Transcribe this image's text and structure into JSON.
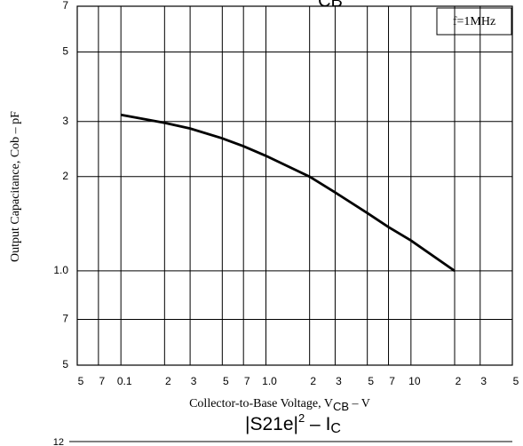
{
  "chart_data": {
    "type": "line",
    "title_fragment": "CB",
    "y_label": "Output Capacitance, Cob  –  pF",
    "x_label": {
      "text": "Collector-to-Base Voltage, V",
      "sub": "CB",
      "unit": "  –  V"
    },
    "annotation": "f=1MHz",
    "log_x": true,
    "log_y": true,
    "grid": true,
    "color": "#000000",
    "x": [
      0.1,
      0.2,
      0.3,
      0.5,
      0.7,
      1.0,
      2,
      3,
      5,
      7,
      10,
      20
    ],
    "values": [
      3.15,
      2.97,
      2.85,
      2.65,
      2.5,
      2.33,
      2.0,
      1.78,
      1.53,
      1.38,
      1.25,
      1.0
    ],
    "xlim": [
      0.05,
      50
    ],
    "xticks": [
      {
        "value": 0.05,
        "label": "5"
      },
      {
        "value": 0.07,
        "label": "7"
      },
      0.1,
      {
        "value": 0.2,
        "label": "2"
      },
      {
        "value": 0.3,
        "label": "3"
      },
      {
        "value": 0.5,
        "label": "5"
      },
      {
        "value": 0.7,
        "label": "7"
      },
      {
        "value": 1,
        "label": "1.0"
      },
      2,
      3,
      5,
      7,
      10,
      {
        "value": 20,
        "label": "2"
      },
      {
        "value": 30,
        "label": "3"
      },
      {
        "value": 50,
        "label": "5"
      }
    ],
    "ylim": [
      0.5,
      7
    ],
    "yticks": [
      {
        "value": 0.5,
        "label": "5"
      },
      {
        "value": 0.7,
        "label": "7"
      },
      {
        "value": 1,
        "label": "1.0"
      },
      2,
      3,
      5,
      7
    ]
  },
  "next_chart": {
    "title": {
      "text": "|S21e|",
      "sup": "2",
      "mid": "  –  I",
      "sub": "C"
    },
    "first_tick": "12"
  }
}
